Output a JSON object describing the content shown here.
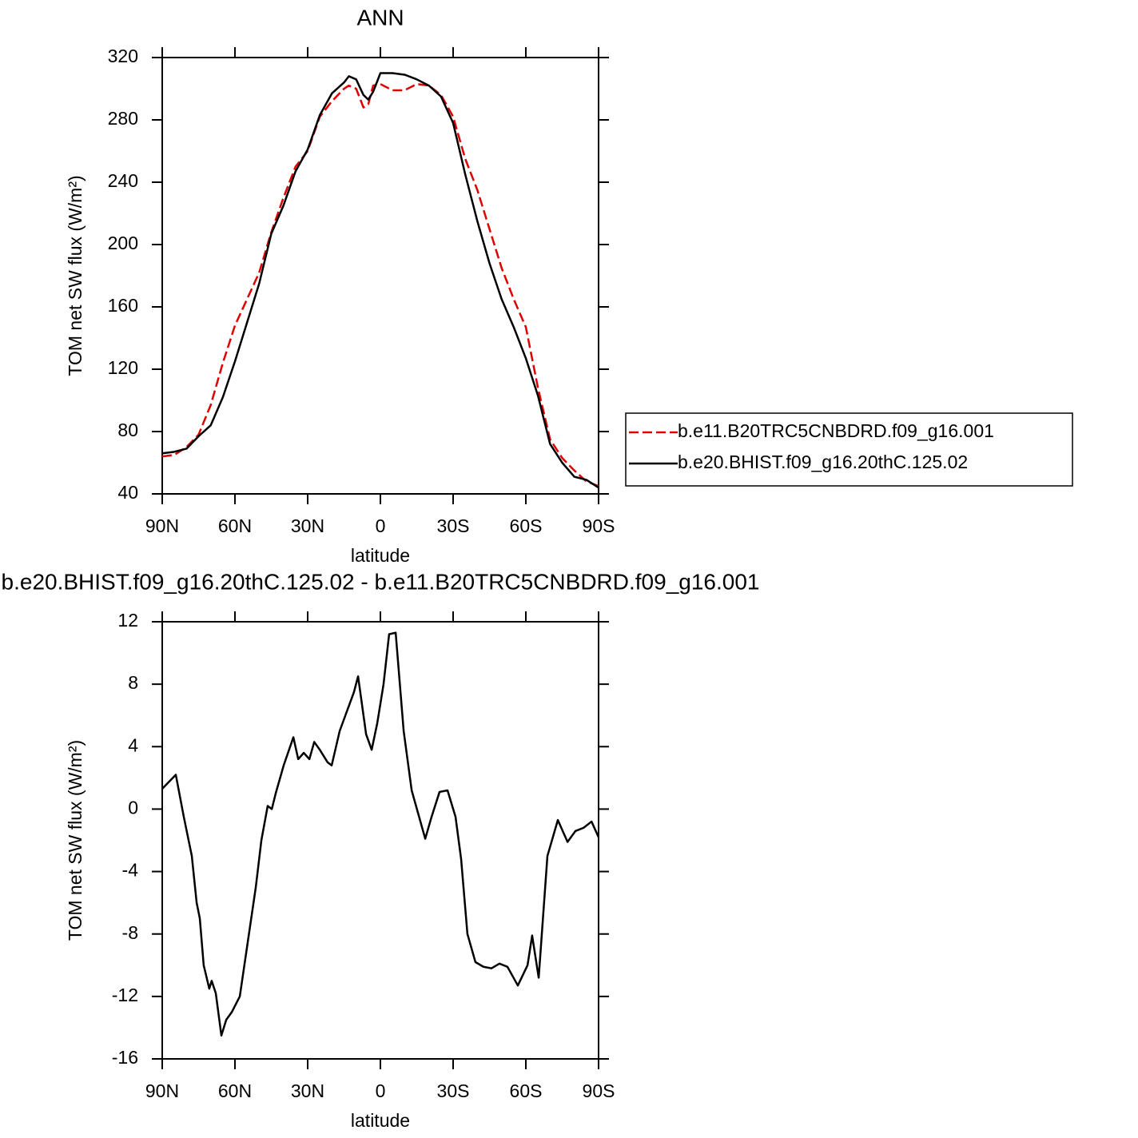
{
  "chart_data": [
    {
      "type": "line",
      "title": "ANN",
      "xlabel": "latitude",
      "ylabel": "TOM net SW flux (W/m²)",
      "x": [
        90,
        85,
        80,
        75,
        70,
        65,
        60,
        55,
        50,
        45,
        40,
        35,
        30,
        25,
        20,
        15,
        13,
        10,
        7,
        5,
        3,
        0,
        -5,
        -10,
        -15,
        -20,
        -25,
        -30,
        -35,
        -40,
        -45,
        -50,
        -55,
        -60,
        -65,
        -70,
        -75,
        -80,
        -85,
        -90
      ],
      "series": [
        {
          "name": "b.e11.B20TRC5CNBDRD.f09_g16.001",
          "color": "#e00000",
          "linestyle": "dashed",
          "values": [
            64,
            65,
            70,
            78,
            97,
            124,
            148,
            165,
            182,
            208,
            230,
            250,
            260,
            282,
            292,
            300,
            302,
            300,
            288,
            290,
            302,
            303,
            299,
            299,
            303,
            302,
            296,
            282,
            255,
            235,
            210,
            185,
            165,
            147,
            108,
            75,
            63,
            55,
            48,
            45
          ]
        },
        {
          "name": "b.e20.BHIST.f09_g16.20thC.125.02",
          "color": "#000000",
          "linestyle": "solid",
          "values": [
            66,
            67,
            69,
            77,
            84,
            102,
            125,
            150,
            175,
            207,
            225,
            247,
            261,
            283,
            297,
            304,
            308,
            306,
            296,
            293,
            298,
            310,
            310,
            309,
            306,
            302,
            295,
            278,
            245,
            215,
            188,
            165,
            147,
            127,
            103,
            72,
            60,
            51,
            49,
            44
          ]
        }
      ],
      "xlim": [
        90,
        -90
      ],
      "xticks": [
        {
          "value": 90,
          "label": "90N"
        },
        {
          "value": 60,
          "label": "60N"
        },
        {
          "value": 30,
          "label": "30N"
        },
        0,
        {
          "value": -30,
          "label": "30S"
        },
        {
          "value": -60,
          "label": "60S"
        },
        {
          "value": -90,
          "label": "90S"
        }
      ],
      "ylim": [
        40,
        320
      ],
      "yticks": [
        40,
        80,
        120,
        160,
        200,
        240,
        280,
        320
      ],
      "legend": "right"
    },
    {
      "type": "line",
      "title": "b.e20.BHIST.f09_g16.20thC.125.02 - b.e11.B20TRC5CNBDRD.f09_g16.001",
      "xlabel": "latitude",
      "ylabel": "TOM net SW flux (W/m²)",
      "x": [
        90,
        84.4,
        81.1,
        77.8,
        75.8,
        74.5,
        72.9,
        70.6,
        69.6,
        67.9,
        65.6,
        63.6,
        61.3,
        58.0,
        54.7,
        51.4,
        49.1,
        46.5,
        44.8,
        43.2,
        39.9,
        35.9,
        33.9,
        31.6,
        29.3,
        27.3,
        25.0,
        21.8,
        20.1,
        16.8,
        13.5,
        10.9,
        9.2,
        5.9,
        3.6,
        1.3,
        -1.3,
        -3.6,
        -6.3,
        -9.6,
        -12.9,
        -18.5,
        -21.1,
        -24.4,
        -27.7,
        -31.0,
        -33.3,
        -35.9,
        -39.2,
        -42.5,
        -45.8,
        -49.1,
        -52.4,
        -56.7,
        -60.7,
        -62.6,
        -65.3,
        -68.9,
        -73.2,
        -77.2,
        -80.5,
        -83.8,
        -87.1,
        -90
      ],
      "series": [
        {
          "color": "#000000",
          "linestyle": "solid",
          "values": [
            1.3,
            2.2,
            -0.5,
            -3,
            -6,
            -7,
            -10,
            -11.5,
            -11,
            -11.8,
            -14.5,
            -13.5,
            -13,
            -12,
            -8.5,
            -5,
            -2,
            0.2,
            0,
            1,
            2.8,
            4.6,
            3.2,
            3.6,
            3.2,
            4.3,
            3.8,
            3,
            2.8,
            5,
            6.4,
            7.5,
            8.5,
            4.8,
            3.8,
            5.5,
            8,
            11.2,
            11.3,
            5,
            1.2,
            -1.9,
            -0.5,
            1.1,
            1.2,
            -0.5,
            -3.2,
            -8,
            -9.8,
            -10.1,
            -10.2,
            -9.9,
            -10.1,
            -11.3,
            -10,
            -8.1,
            -10.8,
            -3,
            -0.7,
            -2.1,
            -1.4,
            -1.2,
            -0.8,
            -1.8
          ]
        }
      ],
      "xlim": [
        90,
        -90
      ],
      "xticks": [
        {
          "value": 90,
          "label": "90N"
        },
        {
          "value": 60,
          "label": "60N"
        },
        {
          "value": 30,
          "label": "30N"
        },
        0,
        {
          "value": -30,
          "label": "30S"
        },
        {
          "value": -60,
          "label": "60S"
        },
        {
          "value": -90,
          "label": "90S"
        }
      ],
      "ylim": [
        -16,
        12
      ],
      "yticks": [
        -16,
        -12,
        -8,
        -4,
        0,
        4,
        8,
        12
      ]
    }
  ]
}
